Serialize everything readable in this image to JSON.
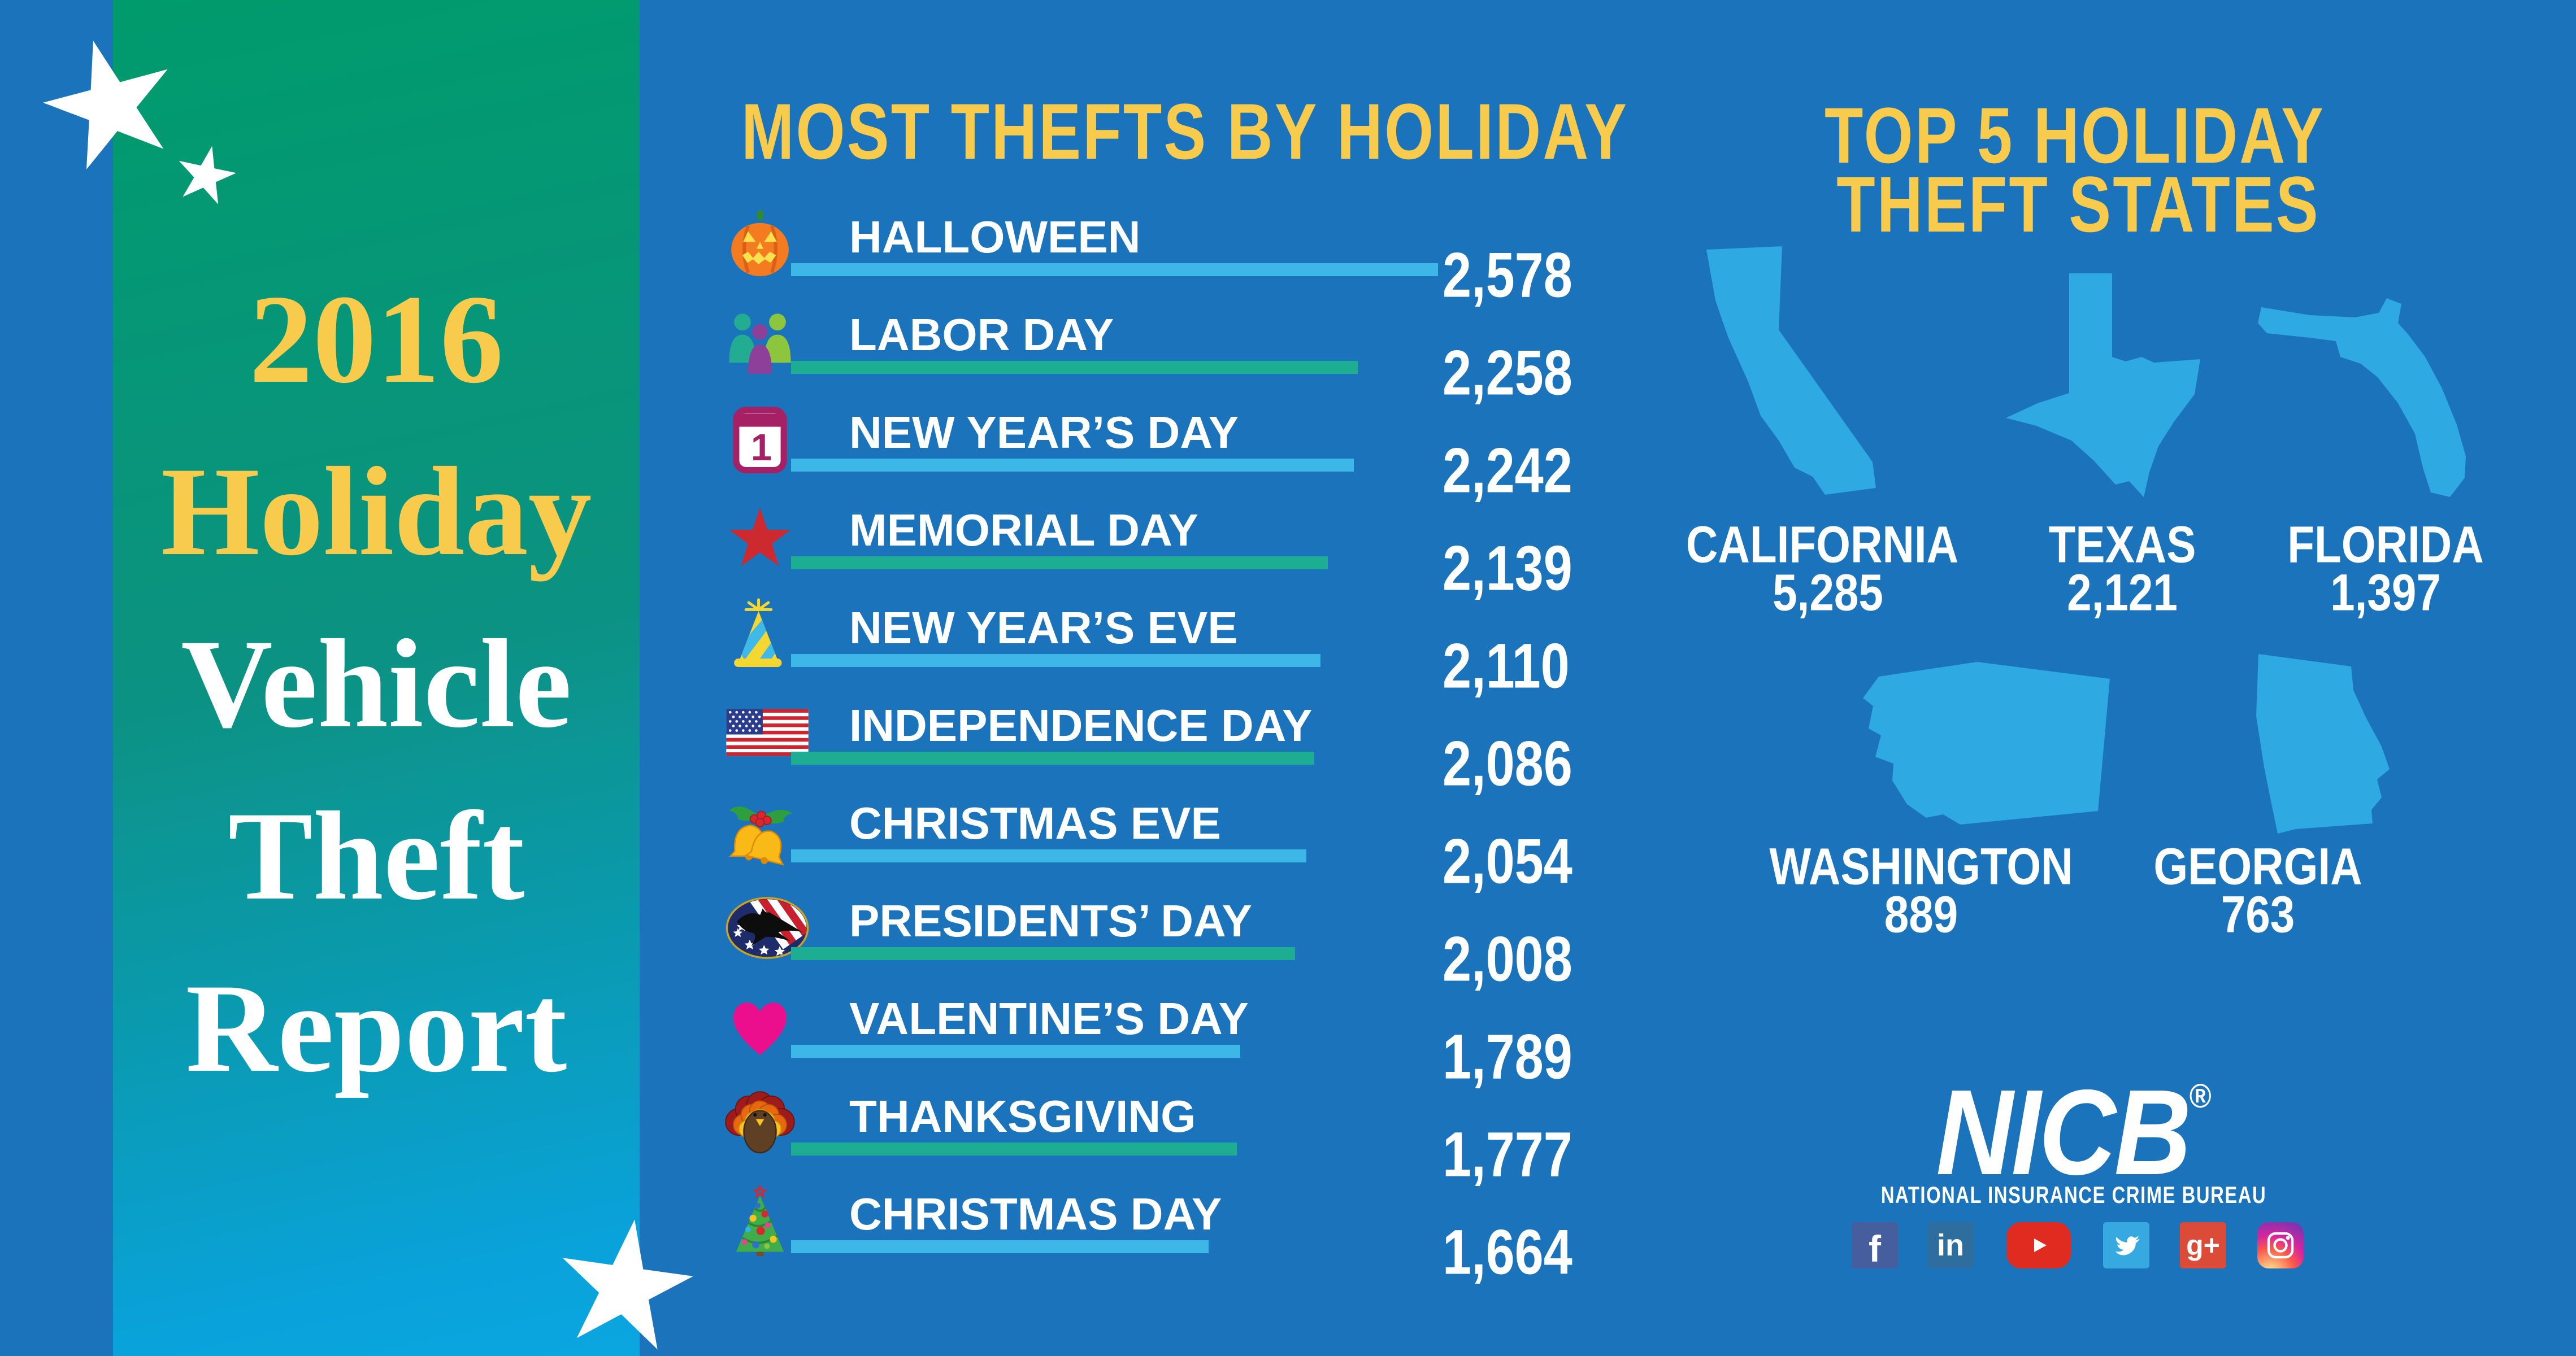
{
  "colors": {
    "background": "#1B74BB",
    "panel_gradient_top": "#009B6C",
    "panel_gradient_mid": "#0C9282",
    "panel_gradient_bottom": "#0BA6E0",
    "accent_yellow": "#F8CB4C",
    "bar_blue": "#3DB7E8",
    "bar_green": "#1CAD92",
    "state_blue": "#2FA9E1",
    "text_white": "#FFFFFF"
  },
  "left_panel": {
    "title_lines": [
      {
        "text": "2016",
        "color": "#F8CB4C"
      },
      {
        "text": "Holiday",
        "color": "#F8CB4C"
      },
      {
        "text": "Vehicle",
        "color": "#FFFFFF"
      },
      {
        "text": "Theft",
        "color": "#FFFFFF"
      },
      {
        "text": "Report",
        "color": "#FFFFFF"
      }
    ]
  },
  "holiday_chart": {
    "title": "MOST THEFTS BY HOLIDAY",
    "max_value": 2578,
    "rows": [
      {
        "label": "HALLOWEEN",
        "value": "2,578",
        "value_num": 2578,
        "icon": "pumpkin-icon",
        "bar_color": "blue"
      },
      {
        "label": "LABOR DAY",
        "value": "2,258",
        "value_num": 2258,
        "icon": "workers-icon",
        "bar_color": "green"
      },
      {
        "label": "NEW YEAR’S DAY",
        "value": "2,242",
        "value_num": 2242,
        "icon": "calendar-icon",
        "bar_color": "blue"
      },
      {
        "label": "MEMORIAL DAY",
        "value": "2,139",
        "value_num": 2139,
        "icon": "red-star-icon",
        "bar_color": "green"
      },
      {
        "label": "NEW YEAR’S EVE",
        "value": "2,110",
        "value_num": 2110,
        "icon": "party-hat-icon",
        "bar_color": "blue"
      },
      {
        "label": "INDEPENDENCE DAY",
        "value": "2,086",
        "value_num": 2086,
        "icon": "us-flag-icon",
        "bar_color": "green"
      },
      {
        "label": "CHRISTMAS EVE",
        "value": "2,054",
        "value_num": 2054,
        "icon": "bells-icon",
        "bar_color": "blue"
      },
      {
        "label": "PRESIDENTS’ DAY",
        "value": "2,008",
        "value_num": 2008,
        "icon": "eagle-seal-icon",
        "bar_color": "green"
      },
      {
        "label": "VALENTINE’S DAY",
        "value": "1,789",
        "value_num": 1789,
        "icon": "heart-icon",
        "bar_color": "blue"
      },
      {
        "label": "THANKSGIVING",
        "value": "1,777",
        "value_num": 1777,
        "icon": "turkey-icon",
        "bar_color": "green"
      },
      {
        "label": "CHRISTMAS DAY",
        "value": "1,664",
        "value_num": 1664,
        "icon": "christmas-tree-icon",
        "bar_color": "blue"
      }
    ]
  },
  "states_panel": {
    "title_line1": "TOP 5 HOLIDAY",
    "title_line2": "THEFT STATES",
    "states": [
      {
        "name": "CALIFORNIA",
        "value": "5,285",
        "value_num": 5285,
        "shape": "california"
      },
      {
        "name": "TEXAS",
        "value": "2,121",
        "value_num": 2121,
        "shape": "texas"
      },
      {
        "name": "FLORIDA",
        "value": "1,397",
        "value_num": 1397,
        "shape": "florida"
      },
      {
        "name": "WASHINGTON",
        "value": "889",
        "value_num": 889,
        "shape": "washington"
      },
      {
        "name": "GEORGIA",
        "value": "763",
        "value_num": 763,
        "shape": "georgia"
      }
    ]
  },
  "footer": {
    "logo_text": "NICB",
    "logo_reg": "®",
    "tagline": "NATIONAL INSURANCE CRIME BUREAU",
    "social": [
      {
        "name": "facebook",
        "glyph": "f"
      },
      {
        "name": "linkedin",
        "glyph": "in"
      },
      {
        "name": "youtube",
        "glyph": ""
      },
      {
        "name": "twitter",
        "glyph": ""
      },
      {
        "name": "google-plus",
        "glyph": "g+"
      },
      {
        "name": "instagram",
        "glyph": ""
      }
    ]
  },
  "chart_data": [
    {
      "type": "bar",
      "orientation": "horizontal",
      "title": "MOST THEFTS BY HOLIDAY",
      "categories": [
        "HALLOWEEN",
        "LABOR DAY",
        "NEW YEAR'S DAY",
        "MEMORIAL DAY",
        "NEW YEAR'S EVE",
        "INDEPENDENCE DAY",
        "CHRISTMAS EVE",
        "PRESIDENTS' DAY",
        "VALENTINE'S DAY",
        "THANKSGIVING",
        "CHRISTMAS DAY"
      ],
      "values": [
        2578,
        2258,
        2242,
        2139,
        2110,
        2086,
        2054,
        2008,
        1789,
        1777,
        1664
      ],
      "value_labels": [
        "2,578",
        "2,258",
        "2,242",
        "2,139",
        "2,110",
        "2,086",
        "2,054",
        "2,008",
        "1,789",
        "1,777",
        "1,664"
      ],
      "bar_colors": [
        "#3DB7E8",
        "#1CAD92",
        "#3DB7E8",
        "#1CAD92",
        "#3DB7E8",
        "#1CAD92",
        "#3DB7E8",
        "#1CAD92",
        "#3DB7E8",
        "#1CAD92",
        "#3DB7E8"
      ],
      "xlabel": "",
      "ylabel": "",
      "grid": false,
      "legend": false
    },
    {
      "type": "bar",
      "title": "TOP 5 HOLIDAY THEFT STATES",
      "categories": [
        "CALIFORNIA",
        "TEXAS",
        "FLORIDA",
        "WASHINGTON",
        "GEORGIA"
      ],
      "values": [
        5285,
        2121,
        1397,
        889,
        763
      ],
      "value_labels": [
        "5,285",
        "2,121",
        "1,397",
        "889",
        "763"
      ],
      "xlabel": "",
      "ylabel": "",
      "grid": false,
      "legend": false
    }
  ]
}
